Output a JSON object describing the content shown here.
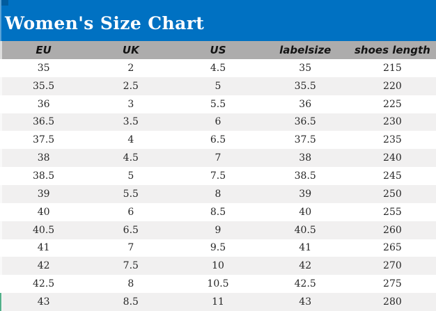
{
  "title": "Women's Size Chart",
  "colors": {
    "title_bar_blue": "#0071C2",
    "header_row_gray": "#ADACAC",
    "row_alt_gray": "#F1F0F0",
    "row_white": "#FFFFFF",
    "title_text": "#FFFFFF",
    "body_text": "#262626",
    "accent_teal": "#53B08A"
  },
  "chart_data": {
    "type": "table",
    "title": "Women's Size Chart",
    "columns": [
      "EU",
      "UK",
      "US",
      "labelsize",
      "shoes length"
    ],
    "rows": [
      [
        "35",
        "2",
        "4.5",
        "35",
        "215"
      ],
      [
        "35.5",
        "2.5",
        "5",
        "35.5",
        "220"
      ],
      [
        "36",
        "3",
        "5.5",
        "36",
        "225"
      ],
      [
        "36.5",
        "3.5",
        "6",
        "36.5",
        "230"
      ],
      [
        "37.5",
        "4",
        "6.5",
        "37.5",
        "235"
      ],
      [
        "38",
        "4.5",
        "7",
        "38",
        "240"
      ],
      [
        "38.5",
        "5",
        "7.5",
        "38.5",
        "245"
      ],
      [
        "39",
        "5.5",
        "8",
        "39",
        "250"
      ],
      [
        "40",
        "6",
        "8.5",
        "40",
        "255"
      ],
      [
        "40.5",
        "6.5",
        "9",
        "40.5",
        "260"
      ],
      [
        "41",
        "7",
        "9.5",
        "41",
        "265"
      ],
      [
        "42",
        "7.5",
        "10",
        "42",
        "270"
      ],
      [
        "42.5",
        "8",
        "10.5",
        "42.5",
        "275"
      ],
      [
        "43",
        "8.5",
        "11",
        "43",
        "280"
      ]
    ],
    "layout_hints": {
      "striped_rows": true,
      "stripe_start": "white",
      "header_fill": "gray",
      "title_banner_fill": "blue",
      "text_alignment": "center",
      "gridlines": false
    }
  }
}
